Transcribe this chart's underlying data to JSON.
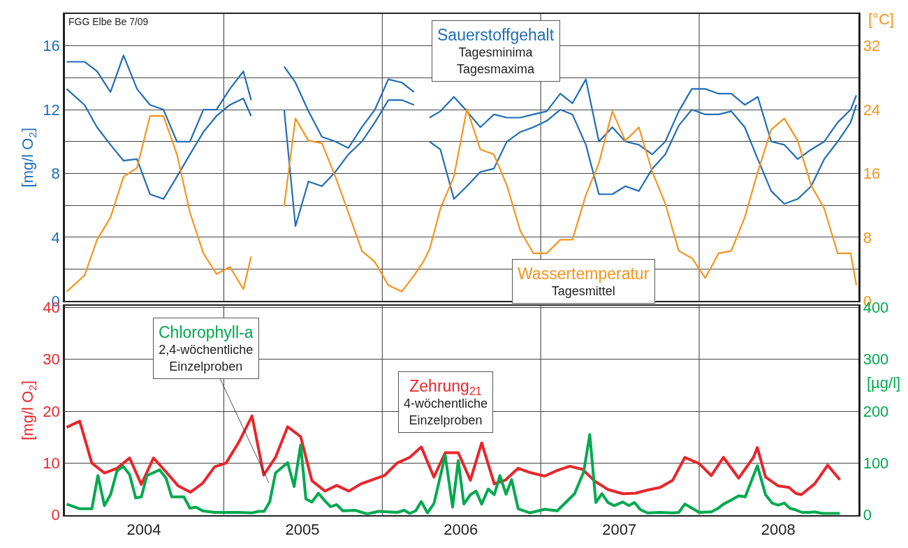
{
  "chart_data": [
    {
      "type": "line",
      "xlim": [
        "2004-01-01",
        "2009-01-01"
      ],
      "xticks": [
        {
          "value": "2005-01-01",
          "label": null
        },
        {
          "value": "2006-01-01",
          "label": null
        },
        {
          "value": "2007-01-01",
          "label": null
        },
        {
          "value": "2008-01-01",
          "label": null
        }
      ],
      "ylim": [
        0,
        18
      ],
      "yticks": [
        0,
        {
          "value": 2,
          "label": null
        },
        4,
        {
          "value": 6,
          "label": null
        },
        8,
        {
          "value": 10,
          "label": null
        },
        12,
        {
          "value": 14,
          "label": null
        },
        16
      ],
      "y2lim": [
        0,
        36
      ],
      "y2ticks": [
        0,
        8,
        16,
        24,
        32
      ],
      "ylabel": "[mg/l O$_{2}$]",
      "y2label": "[°C]",
      "grid": true,
      "tick_labels": "y",
      "annotations": [
        "FGG Elbe Be 7/09",
        "Sauerstoffgehalt\nTagesminima\nTagesmaxima",
        "Wassertemperatur\nTagesmittel"
      ],
      "series": [
        {
          "color": "#1f6db5",
          "x": [
            "2004-01-05",
            "2004-02-15",
            "2004-03-15",
            "2004-04-15",
            "2004-05-15",
            "2004-06-15",
            "2004-07-15",
            "2004-08-15",
            "2004-09-15",
            "2004-10-15",
            "2004-11-15",
            "2004-12-15",
            "2005-01-15",
            "2005-02-15",
            "2005-03-05",
            "2005-04-10",
            "2005-05-20",
            "2005-06-15",
            "2005-07-15",
            "2005-08-15",
            "2005-09-15",
            "2005-10-15",
            "2005-11-15",
            "2005-12-15",
            "2006-01-15",
            "2006-02-15",
            "2006-03-15",
            "2006-04-05",
            "2006-04-20",
            "2006-05-15",
            "2006-06-15",
            "2006-07-15",
            "2006-08-15",
            "2006-09-15",
            "2006-10-15",
            "2006-11-15",
            "2006-12-15",
            "2007-01-15",
            "2007-02-15",
            "2007-03-15",
            "2007-04-15",
            "2007-05-15",
            "2007-06-15",
            "2007-07-15",
            "2007-08-15",
            "2007-09-15",
            "2007-10-15",
            "2007-11-15",
            "2007-12-15",
            "2008-01-15",
            "2008-02-15",
            "2008-03-15",
            "2008-04-15",
            "2008-05-15",
            "2008-06-15",
            "2008-07-15",
            "2008-08-15",
            "2008-09-15",
            "2008-10-15",
            "2008-11-15",
            "2008-12-15",
            "2008-12-28"
          ],
          "values": [
            15.0,
            15.0,
            14.4,
            13.1,
            15.4,
            13.3,
            12.3,
            12.0,
            10.0,
            10.0,
            12.0,
            12.0,
            13.3,
            14.4,
            12.6,
            null,
            14.7,
            13.7,
            11.9,
            10.3,
            10.0,
            9.6,
            10.9,
            12.0,
            13.9,
            13.7,
            13.1,
            null,
            11.5,
            11.9,
            12.8,
            11.9,
            10.9,
            11.7,
            11.5,
            11.5,
            11.7,
            11.9,
            13.0,
            12.4,
            13.9,
            10.0,
            10.9,
            10.0,
            9.8,
            9.2,
            10.0,
            11.9,
            13.3,
            13.3,
            13.0,
            13.0,
            12.3,
            12.8,
            10.0,
            9.8,
            8.9,
            9.5,
            10.0,
            11.2,
            12.0,
            12.9
          ]
        },
        {
          "color": "#1f6db5",
          "x": [
            "2004-01-05",
            "2004-02-15",
            "2004-03-15",
            "2004-04-15",
            "2004-05-15",
            "2004-06-15",
            "2004-07-15",
            "2004-08-15",
            "2004-09-15",
            "2004-10-15",
            "2004-11-15",
            "2004-12-15",
            "2005-01-15",
            "2005-02-15",
            "2005-03-05",
            "2005-04-10",
            "2005-05-20",
            "2005-06-15",
            "2005-07-15",
            "2005-08-15",
            "2005-09-15",
            "2005-10-15",
            "2005-11-15",
            "2005-12-15",
            "2006-01-15",
            "2006-02-15",
            "2006-03-15",
            "2006-04-05",
            "2006-04-20",
            "2006-05-15",
            "2006-06-15",
            "2006-07-15",
            "2006-08-15",
            "2006-09-15",
            "2006-10-15",
            "2006-11-15",
            "2006-12-15",
            "2007-01-15",
            "2007-02-15",
            "2007-03-15",
            "2007-04-15",
            "2007-05-15",
            "2007-06-15",
            "2007-07-15",
            "2007-08-15",
            "2007-09-15",
            "2007-10-15",
            "2007-11-15",
            "2007-12-15",
            "2008-01-15",
            "2008-02-15",
            "2008-03-15",
            "2008-04-15",
            "2008-05-15",
            "2008-06-15",
            "2008-07-15",
            "2008-08-15",
            "2008-09-15",
            "2008-10-15",
            "2008-11-15",
            "2008-12-15",
            "2008-12-28"
          ],
          "values": [
            13.3,
            12.3,
            10.9,
            9.8,
            8.8,
            8.9,
            6.7,
            6.4,
            7.8,
            9.2,
            10.6,
            11.6,
            12.3,
            12.7,
            11.6,
            null,
            12.0,
            4.7,
            7.5,
            7.2,
            8.1,
            9.2,
            10.0,
            11.2,
            12.6,
            12.6,
            12.3,
            null,
            10.0,
            9.5,
            6.4,
            7.2,
            8.1,
            8.3,
            10.0,
            10.6,
            10.9,
            11.3,
            12.0,
            11.7,
            9.8,
            6.7,
            6.7,
            7.2,
            6.9,
            8.3,
            9.2,
            11.0,
            12.0,
            11.7,
            11.7,
            11.9,
            10.9,
            8.9,
            6.9,
            6.1,
            6.4,
            7.2,
            8.9,
            10.0,
            11.2,
            12.3
          ]
        },
        {
          "color": "#f7941d",
          "axis": "y2",
          "x": [
            "2004-01-05",
            "2004-02-15",
            "2004-03-15",
            "2004-04-15",
            "2004-05-15",
            "2004-06-15",
            "2004-07-15",
            "2004-08-15",
            "2004-09-15",
            "2004-10-15",
            "2004-11-15",
            "2004-12-15",
            "2005-01-15",
            "2005-02-15",
            "2005-03-05",
            "2005-04-10",
            "2005-05-20",
            "2005-06-15",
            "2005-07-15",
            "2005-08-15",
            "2005-09-15",
            "2005-10-15",
            "2005-11-15",
            "2005-12-15",
            "2006-01-15",
            "2006-02-15",
            "2006-03-15",
            "2006-04-05",
            "2006-04-20",
            "2006-05-15",
            "2006-06-15",
            "2006-07-15",
            "2006-08-15",
            "2006-09-15",
            "2006-10-15",
            "2006-11-15",
            "2006-12-15",
            "2007-01-15",
            "2007-02-15",
            "2007-03-15",
            "2007-04-15",
            "2007-05-15",
            "2007-06-15",
            "2007-07-15",
            "2007-08-15",
            "2007-09-15",
            "2007-10-15",
            "2007-11-15",
            "2007-12-15",
            "2008-01-15",
            "2008-02-15",
            "2008-03-15",
            "2008-04-15",
            "2008-05-15",
            "2008-06-15",
            "2008-07-15",
            "2008-08-15",
            "2008-09-15",
            "2008-10-15",
            "2008-11-15",
            "2008-12-15",
            "2008-12-28"
          ],
          "values": [
            1.2,
            3.2,
            7.7,
            10.5,
            15.6,
            16.7,
            23.2,
            23.2,
            18.4,
            11.1,
            6.0,
            3.4,
            4.3,
            1.5,
            5.6,
            null,
            11.9,
            22.9,
            20.1,
            19.8,
            15.6,
            11.1,
            6.3,
            4.9,
            2.0,
            1.2,
            3.2,
            4.9,
            6.5,
            11.6,
            15.6,
            24.1,
            19.0,
            18.4,
            14.5,
            8.8,
            6.0,
            6.0,
            7.7,
            7.7,
            13.3,
            17.3,
            23.8,
            20.1,
            21.8,
            16.2,
            12.2,
            6.3,
            5.4,
            2.9,
            6.0,
            6.3,
            10.5,
            16.2,
            21.5,
            22.9,
            20.1,
            14.5,
            11.6,
            6.0,
            6.0,
            2.0
          ]
        }
      ]
    },
    {
      "type": "line",
      "xlim": [
        "2004-01-01",
        "2009-01-01"
      ],
      "xticks": [
        {
          "value": "2004-07-01",
          "label": "2004"
        },
        {
          "value": "2005-01-01",
          "label": null
        },
        {
          "value": "2005-07-01",
          "label": "2005"
        },
        {
          "value": "2006-01-01",
          "label": null
        },
        {
          "value": "2006-07-01",
          "label": "2006"
        },
        {
          "value": "2007-01-01",
          "label": null
        },
        {
          "value": "2007-07-01",
          "label": "2007"
        },
        {
          "value": "2008-01-01",
          "label": null
        },
        {
          "value": "2008-07-01",
          "label": "2008"
        }
      ],
      "ylim": [
        0,
        40.3
      ],
      "yticks": [
        0,
        10,
        20,
        30,
        40
      ],
      "y2lim": [
        0,
        403
      ],
      "y2ticks": [
        0,
        100,
        200,
        300,
        400
      ],
      "ylabel": "[mg/l O$_{2}$]",
      "y2label": "[µg/l]",
      "grid": true,
      "annotations": [
        "Chlorophyll-a\n2,4-wöchentliche\nEinzelproben",
        "Zehrung$_{21}$\n4-wöchentliche\nEinzelproben"
      ],
      "series": [
        {
          "color": "#e8262b",
          "x": [
            "2004-01-05",
            "2004-02-04",
            "2004-03-03",
            "2004-04-01",
            "2004-04-30",
            "2004-05-29",
            "2004-06-25",
            "2004-07-23",
            "2004-08-21",
            "2004-09-18",
            "2004-10-16",
            "2004-11-13",
            "2004-12-11",
            "2005-01-06",
            "2005-02-05",
            "2005-03-07",
            "2005-04-03",
            "2005-04-30",
            "2005-05-28",
            "2005-06-27",
            "2005-07-23",
            "2005-08-22",
            "2005-09-18",
            "2005-10-16",
            "2005-11-13",
            "2005-12-10",
            "2006-01-06",
            "2006-02-04",
            "2006-03-05",
            "2006-04-01",
            "2006-04-30",
            "2006-05-26",
            "2006-06-25",
            "2006-07-23",
            "2006-08-18",
            "2006-09-16",
            "2006-10-11",
            "2006-11-10",
            "2006-12-07",
            "2007-01-10",
            "2007-02-08",
            "2007-03-09",
            "2007-04-07",
            "2007-05-06",
            "2007-06-05",
            "2007-07-09",
            "2007-08-07",
            "2007-09-04",
            "2007-10-03",
            "2007-11-01",
            "2007-11-29",
            "2008-01-01",
            "2008-01-29",
            "2008-02-26",
            "2008-04-01",
            "2008-05-05",
            "2008-05-14",
            "2008-06-02",
            "2008-07-01",
            "2008-07-26",
            "2008-08-10",
            "2008-08-23",
            "2008-09-23",
            "2008-10-23",
            "2008-11-20"
          ],
          "values": [
            16.9,
            18.1,
            10.0,
            8.1,
            9.0,
            11.0,
            5.9,
            11.0,
            8.3,
            5.6,
            4.4,
            6.1,
            9.3,
            10.0,
            14.1,
            19.1,
            7.7,
            11.1,
            17.0,
            15.1,
            6.6,
            4.6,
            5.7,
            4.6,
            6.0,
            6.8,
            7.6,
            10.0,
            11.1,
            13.1,
            7.3,
            12.0,
            12.0,
            6.7,
            13.9,
            6.0,
            6.7,
            9.0,
            8.2,
            7.5,
            8.6,
            9.4,
            8.8,
            6.5,
            4.9,
            4.1,
            4.2,
            4.8,
            5.3,
            6.7,
            11.1,
            9.9,
            7.6,
            11.1,
            7.1,
            11.1,
            13.0,
            7.3,
            5.6,
            5.3,
            4.2,
            3.9,
            6.0,
            9.6,
            6.8
          ]
        },
        {
          "color": "#00a94f",
          "axis": "y2",
          "x": [
            "2004-01-05",
            "2004-02-04",
            "2004-03-03",
            "2004-03-17",
            "2004-04-01",
            "2004-04-15",
            "2004-04-30",
            "2004-05-14",
            "2004-05-29",
            "2004-06-12",
            "2004-06-25",
            "2004-07-08",
            "2004-08-06",
            "2004-08-21",
            "2004-09-03",
            "2004-10-01",
            "2004-10-15",
            "2004-10-29",
            "2004-11-13",
            "2004-12-11",
            "2005-02-05",
            "2005-03-07",
            "2005-03-22",
            "2005-04-04",
            "2005-04-17",
            "2005-04-30",
            "2005-05-28",
            "2005-06-12",
            "2005-06-27",
            "2005-07-09",
            "2005-07-23",
            "2005-08-07",
            "2005-08-22",
            "2005-09-04",
            "2005-09-18",
            "2005-10-02",
            "2005-10-30",
            "2005-11-27",
            "2005-12-24",
            "2006-02-04",
            "2006-02-21",
            "2006-03-05",
            "2006-03-19",
            "2006-04-01",
            "2006-04-15",
            "2006-04-30",
            "2006-05-26",
            "2006-06-12",
            "2006-06-25",
            "2006-07-08",
            "2006-07-23",
            "2006-08-05",
            "2006-08-18",
            "2006-09-02",
            "2006-09-16",
            "2006-09-29",
            "2006-10-13",
            "2006-10-26",
            "2006-11-10",
            "2006-12-07",
            "2007-01-10",
            "2007-02-08",
            "2007-03-20",
            "2007-04-10",
            "2007-04-24",
            "2007-05-08",
            "2007-05-22",
            "2007-06-05",
            "2007-06-19",
            "2007-07-09",
            "2007-07-23",
            "2007-08-05",
            "2007-08-19",
            "2007-09-04",
            "2007-10-03",
            "2007-11-01",
            "2007-11-15",
            "2007-11-29",
            "2008-01-01",
            "2008-01-29",
            "2008-02-12",
            "2008-02-26",
            "2008-03-13",
            "2008-04-01",
            "2008-04-16",
            "2008-05-14",
            "2008-06-02",
            "2008-06-17",
            "2008-07-01",
            "2008-07-15",
            "2008-07-28",
            "2008-08-10",
            "2008-08-25",
            "2008-09-10",
            "2008-09-23",
            "2008-10-11",
            "2008-11-20"
          ],
          "values": [
            21,
            12,
            12,
            76,
            18,
            39,
            85,
            94,
            78,
            33,
            35,
            76,
            87,
            71,
            35,
            35,
            13,
            15,
            8,
            5,
            5,
            4,
            7,
            7,
            26,
            81,
            101,
            55,
            135,
            31,
            25,
            42,
            27,
            16,
            20,
            8,
            9,
            2,
            7,
            5,
            9,
            3,
            8,
            26,
            4,
            22,
            115,
            15,
            105,
            21,
            39,
            46,
            21,
            50,
            39,
            76,
            40,
            68,
            12,
            4,
            11,
            8,
            41,
            83,
            155,
            24,
            41,
            24,
            18,
            25,
            18,
            24,
            10,
            4,
            5,
            4,
            5,
            21,
            5,
            6,
            12,
            21,
            28,
            37,
            35,
            95,
            39,
            23,
            19,
            23,
            13,
            10,
            5,
            5,
            6,
            3,
            3
          ]
        }
      ]
    }
  ]
}
